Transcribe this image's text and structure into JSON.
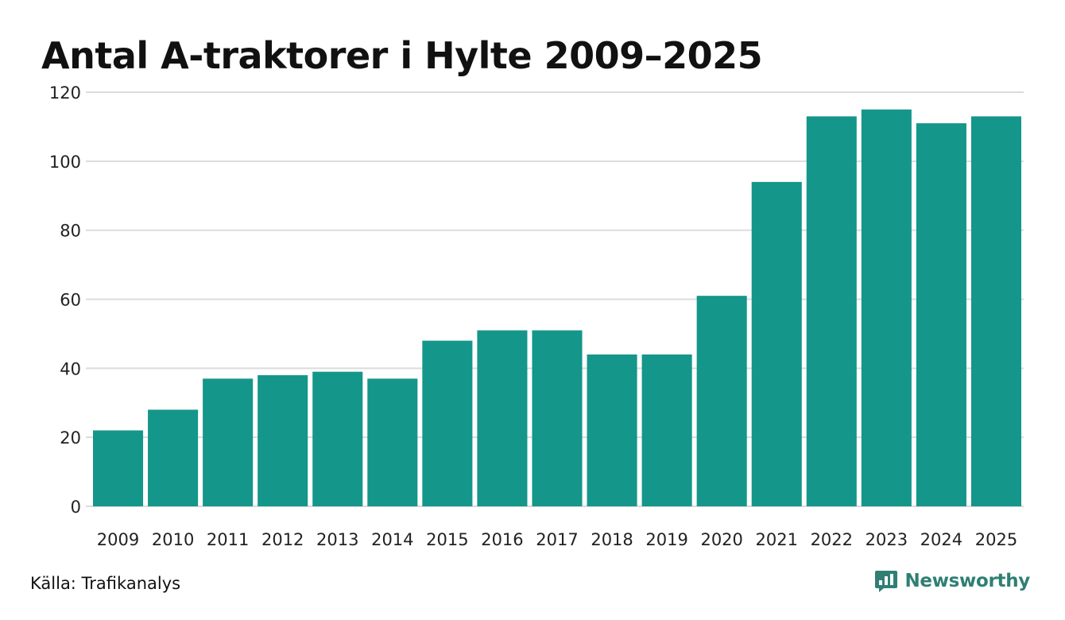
{
  "chart_data": {
    "type": "bar",
    "title": "Antal A-traktorer i Hylte 2009–2025",
    "xlabel": "",
    "ylabel": "",
    "categories": [
      "2009",
      "2010",
      "2011",
      "2012",
      "2013",
      "2014",
      "2015",
      "2016",
      "2017",
      "2018",
      "2019",
      "2020",
      "2021",
      "2022",
      "2023",
      "2024",
      "2025"
    ],
    "values": [
      22,
      28,
      37,
      38,
      39,
      37,
      48,
      51,
      51,
      44,
      44,
      61,
      94,
      113,
      115,
      111,
      113
    ],
    "ylim": [
      0,
      120
    ],
    "yticks": [
      "0",
      "20",
      "40",
      "60",
      "80",
      "100",
      "120"
    ],
    "grid": true,
    "legend": "none",
    "bar_color": "#15968a",
    "grid_color": "#dcdcdc"
  },
  "footer": {
    "source": "Källa: Trafikanalys",
    "brand": "Newsworthy",
    "brand_color": "#2f7f74",
    "brand_icon": "bar-chart-speech-bubble-icon"
  }
}
